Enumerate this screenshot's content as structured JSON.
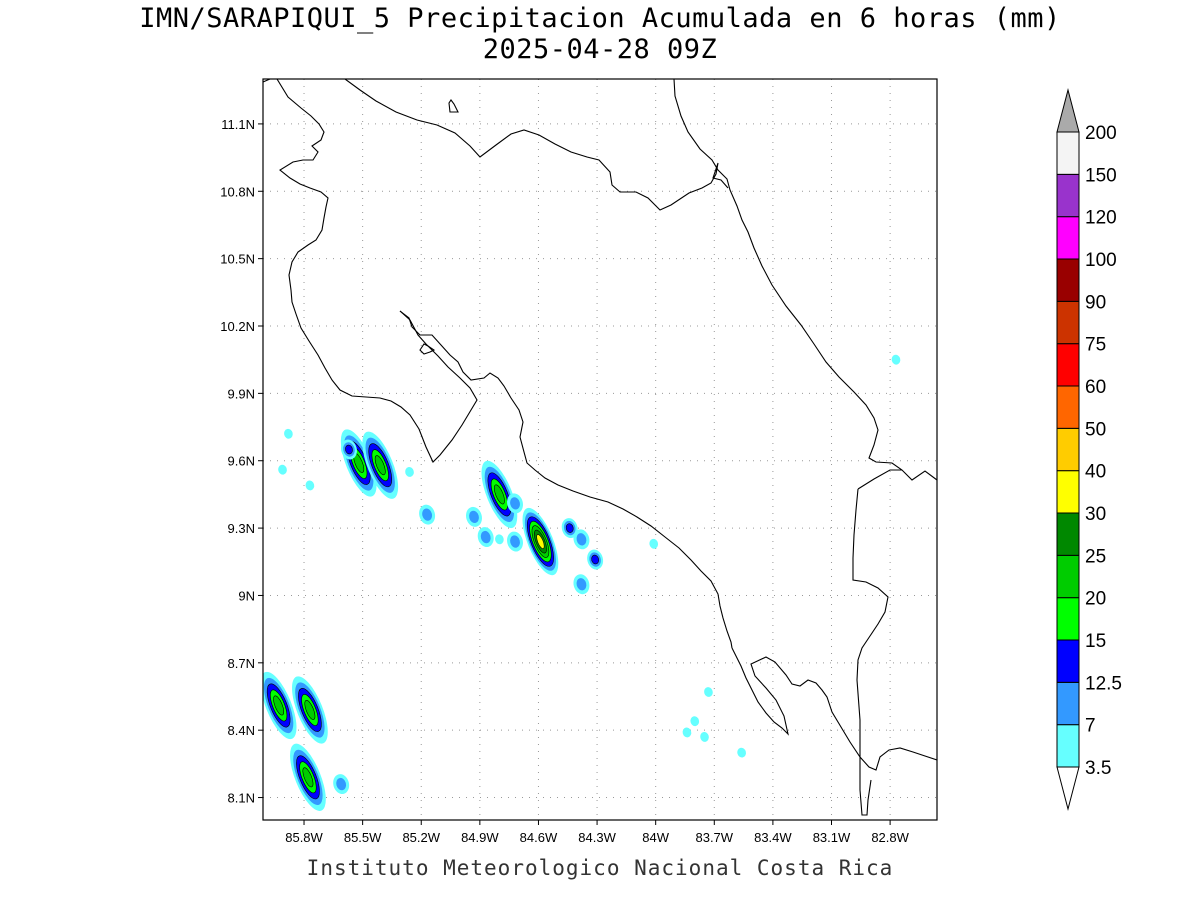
{
  "map": {
    "title_line1": "IMN/SARAPIQUI_5 Precipitacion Acumulada en 6 horas (mm)",
    "title_line2": "2025-04-28 09Z",
    "footer": "Instituto Meteorologico Nacional Costa Rica",
    "extent": {
      "lon_min": -86.01,
      "lon_max": -82.56,
      "lat_min": 8.0,
      "lat_max": 11.3
    },
    "lat_ticks": [
      {
        "value": 11.1,
        "label": "11.1N"
      },
      {
        "value": 10.8,
        "label": "10.8N"
      },
      {
        "value": 10.5,
        "label": "10.5N"
      },
      {
        "value": 10.2,
        "label": "10.2N"
      },
      {
        "value": 9.9,
        "label": "9.9N"
      },
      {
        "value": 9.6,
        "label": "9.6N"
      },
      {
        "value": 9.3,
        "label": "9.3N"
      },
      {
        "value": 9.0,
        "label": "9N"
      },
      {
        "value": 8.7,
        "label": "8.7N"
      },
      {
        "value": 8.4,
        "label": "8.4N"
      },
      {
        "value": 8.1,
        "label": "8.1N"
      }
    ],
    "lon_ticks": [
      {
        "value": -85.8,
        "label": "85.8W"
      },
      {
        "value": -85.5,
        "label": "85.5W"
      },
      {
        "value": -85.2,
        "label": "85.2W"
      },
      {
        "value": -84.9,
        "label": "84.9W"
      },
      {
        "value": -84.6,
        "label": "84.6W"
      },
      {
        "value": -84.3,
        "label": "84.3W"
      },
      {
        "value": -84.0,
        "label": "84W"
      },
      {
        "value": -83.7,
        "label": "83.7W"
      },
      {
        "value": -83.4,
        "label": "83.4W"
      },
      {
        "value": -83.1,
        "label": "83.1W"
      },
      {
        "value": -82.8,
        "label": "82.8W"
      }
    ]
  },
  "colorbar": [
    {
      "label": "3.5",
      "color": "#66ffff"
    },
    {
      "label": "7",
      "color": "#3399ff"
    },
    {
      "label": "12.5",
      "color": "#0000ff"
    },
    {
      "label": "15",
      "color": "#00ff00"
    },
    {
      "label": "20",
      "color": "#00cc00"
    },
    {
      "label": "25",
      "color": "#008800"
    },
    {
      "label": "30",
      "color": "#ffff00"
    },
    {
      "label": "40",
      "color": "#ffcc00"
    },
    {
      "label": "50",
      "color": "#ff6600"
    },
    {
      "label": "60",
      "color": "#ff0000"
    },
    {
      "label": "75",
      "color": "#cc3300"
    },
    {
      "label": "90",
      "color": "#990000"
    },
    {
      "label": "100",
      "color": "#ff00ff"
    },
    {
      "label": "120",
      "color": "#9933cc"
    },
    {
      "label": "150",
      "color": "#f4f4f4"
    },
    {
      "label": "200",
      "color": "#aaaaaa"
    }
  ],
  "precip_cells": [
    {
      "lon": -85.93,
      "lat": 8.51,
      "levels": 5
    },
    {
      "lon": -85.77,
      "lat": 8.49,
      "levels": 5
    },
    {
      "lon": -85.78,
      "lat": 8.19,
      "levels": 5
    },
    {
      "lon": -85.61,
      "lat": 8.16,
      "levels": 2
    },
    {
      "lon": -84.59,
      "lat": 9.24,
      "levels": 7
    },
    {
      "lon": -85.52,
      "lat": 9.59,
      "levels": 5
    },
    {
      "lon": -85.41,
      "lat": 9.58,
      "levels": 5
    },
    {
      "lon": -85.57,
      "lat": 9.65,
      "levels": 3
    },
    {
      "lon": -84.8,
      "lat": 9.45,
      "levels": 5
    },
    {
      "lon": -84.44,
      "lat": 9.3,
      "levels": 3
    },
    {
      "lon": -84.31,
      "lat": 9.16,
      "levels": 3
    },
    {
      "lon": -84.72,
      "lat": 9.41,
      "levels": 2
    },
    {
      "lon": -84.72,
      "lat": 9.24,
      "levels": 2
    },
    {
      "lon": -84.8,
      "lat": 9.25,
      "levels": 1
    },
    {
      "lon": -84.87,
      "lat": 9.26,
      "levels": 2
    },
    {
      "lon": -84.38,
      "lat": 9.25,
      "levels": 2
    },
    {
      "lon": -84.38,
      "lat": 9.05,
      "levels": 2
    },
    {
      "lon": -85.17,
      "lat": 9.36,
      "levels": 2
    },
    {
      "lon": -84.93,
      "lat": 9.35,
      "levels": 2
    },
    {
      "lon": -85.77,
      "lat": 9.49,
      "levels": 1
    },
    {
      "lon": -85.26,
      "lat": 9.55,
      "levels": 1
    },
    {
      "lon": -83.73,
      "lat": 8.57,
      "levels": 1
    },
    {
      "lon": -83.8,
      "lat": 8.44,
      "levels": 1
    },
    {
      "lon": -83.84,
      "lat": 8.39,
      "levels": 1
    },
    {
      "lon": -83.75,
      "lat": 8.37,
      "levels": 1
    },
    {
      "lon": -83.56,
      "lat": 8.3,
      "levels": 1
    },
    {
      "lon": -84.01,
      "lat": 9.23,
      "levels": 1
    },
    {
      "lon": -85.88,
      "lat": 9.72,
      "levels": 1
    },
    {
      "lon": -85.91,
      "lat": 9.56,
      "levels": 1
    },
    {
      "lon": -82.77,
      "lat": 10.05,
      "levels": 1
    }
  ]
}
